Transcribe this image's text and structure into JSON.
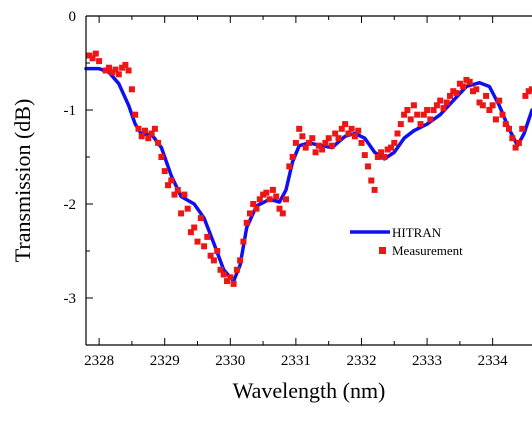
{
  "chart_data": {
    "type": "line",
    "xlabel": "Wavelength (nm)",
    "ylabel": "Transmission (dB)",
    "xlim": [
      2327.8,
      2334.6
    ],
    "ylim": [
      -3.5,
      0
    ],
    "xticks": [
      2328,
      2329,
      2330,
      2331,
      2332,
      2333,
      2334
    ],
    "yticks": [
      0,
      -1,
      -2,
      -3
    ],
    "grid": false,
    "legend_position": "center-right",
    "series": [
      {
        "name": "HITRAN",
        "kind": "line",
        "color": "#1010ee",
        "points": [
          [
            2327.8,
            -0.56
          ],
          [
            2328.0,
            -0.56
          ],
          [
            2328.15,
            -0.6
          ],
          [
            2328.3,
            -0.72
          ],
          [
            2328.45,
            -0.95
          ],
          [
            2328.55,
            -1.15
          ],
          [
            2328.65,
            -1.26
          ],
          [
            2328.8,
            -1.26
          ],
          [
            2328.95,
            -1.4
          ],
          [
            2329.1,
            -1.7
          ],
          [
            2329.25,
            -1.92
          ],
          [
            2329.45,
            -2.0
          ],
          [
            2329.6,
            -2.15
          ],
          [
            2329.75,
            -2.42
          ],
          [
            2329.9,
            -2.7
          ],
          [
            2330.05,
            -2.82
          ],
          [
            2330.15,
            -2.65
          ],
          [
            2330.25,
            -2.25
          ],
          [
            2330.4,
            -2.02
          ],
          [
            2330.6,
            -1.95
          ],
          [
            2330.75,
            -1.98
          ],
          [
            2330.85,
            -1.85
          ],
          [
            2330.95,
            -1.55
          ],
          [
            2331.05,
            -1.38
          ],
          [
            2331.2,
            -1.35
          ],
          [
            2331.4,
            -1.38
          ],
          [
            2331.55,
            -1.4
          ],
          [
            2331.75,
            -1.28
          ],
          [
            2331.9,
            -1.25
          ],
          [
            2332.05,
            -1.3
          ],
          [
            2332.2,
            -1.45
          ],
          [
            2332.35,
            -1.52
          ],
          [
            2332.5,
            -1.45
          ],
          [
            2332.65,
            -1.3
          ],
          [
            2332.8,
            -1.22
          ],
          [
            2333.0,
            -1.15
          ],
          [
            2333.2,
            -1.05
          ],
          [
            2333.4,
            -0.9
          ],
          [
            2333.6,
            -0.75
          ],
          [
            2333.8,
            -0.71
          ],
          [
            2333.95,
            -0.75
          ],
          [
            2334.1,
            -0.95
          ],
          [
            2334.25,
            -1.2
          ],
          [
            2334.38,
            -1.38
          ],
          [
            2334.48,
            -1.25
          ],
          [
            2334.6,
            -1.0
          ]
        ]
      },
      {
        "name": "Measurement",
        "kind": "scatter",
        "color": "#ee1515",
        "points": [
          [
            2327.85,
            -0.42
          ],
          [
            2327.9,
            -0.45
          ],
          [
            2327.95,
            -0.4
          ],
          [
            2328.0,
            -0.48
          ],
          [
            2328.1,
            -0.58
          ],
          [
            2328.15,
            -0.55
          ],
          [
            2328.2,
            -0.6
          ],
          [
            2328.25,
            -0.57
          ],
          [
            2328.3,
            -0.62
          ],
          [
            2328.35,
            -0.55
          ],
          [
            2328.4,
            -0.52
          ],
          [
            2328.45,
            -0.58
          ],
          [
            2328.5,
            -0.78
          ],
          [
            2328.55,
            -1.05
          ],
          [
            2328.6,
            -1.2
          ],
          [
            2328.65,
            -1.28
          ],
          [
            2328.7,
            -1.22
          ],
          [
            2328.75,
            -1.3
          ],
          [
            2328.8,
            -1.25
          ],
          [
            2328.85,
            -1.2
          ],
          [
            2328.9,
            -1.35
          ],
          [
            2328.95,
            -1.5
          ],
          [
            2329.0,
            -1.65
          ],
          [
            2329.05,
            -1.8
          ],
          [
            2329.1,
            -1.75
          ],
          [
            2329.15,
            -1.9
          ],
          [
            2329.2,
            -1.85
          ],
          [
            2329.25,
            -2.1
          ],
          [
            2329.3,
            -1.9
          ],
          [
            2329.35,
            -2.05
          ],
          [
            2329.4,
            -2.3
          ],
          [
            2329.45,
            -2.25
          ],
          [
            2329.5,
            -2.4
          ],
          [
            2329.55,
            -2.15
          ],
          [
            2329.6,
            -2.45
          ],
          [
            2329.65,
            -2.35
          ],
          [
            2329.7,
            -2.55
          ],
          [
            2329.75,
            -2.6
          ],
          [
            2329.8,
            -2.5
          ],
          [
            2329.85,
            -2.7
          ],
          [
            2329.9,
            -2.75
          ],
          [
            2329.95,
            -2.82
          ],
          [
            2330.0,
            -2.78
          ],
          [
            2330.05,
            -2.85
          ],
          [
            2330.1,
            -2.7
          ],
          [
            2330.15,
            -2.6
          ],
          [
            2330.2,
            -2.4
          ],
          [
            2330.25,
            -2.2
          ],
          [
            2330.3,
            -2.1
          ],
          [
            2330.35,
            -2.0
          ],
          [
            2330.4,
            -2.05
          ],
          [
            2330.45,
            -1.95
          ],
          [
            2330.5,
            -1.9
          ],
          [
            2330.55,
            -1.88
          ],
          [
            2330.6,
            -1.95
          ],
          [
            2330.65,
            -1.85
          ],
          [
            2330.7,
            -1.92
          ],
          [
            2330.75,
            -2.05
          ],
          [
            2330.8,
            -2.1
          ],
          [
            2330.85,
            -1.95
          ],
          [
            2330.9,
            -1.6
          ],
          [
            2330.95,
            -1.5
          ],
          [
            2331.0,
            -1.35
          ],
          [
            2331.05,
            -1.2
          ],
          [
            2331.1,
            -1.28
          ],
          [
            2331.15,
            -1.4
          ],
          [
            2331.2,
            -1.35
          ],
          [
            2331.25,
            -1.3
          ],
          [
            2331.3,
            -1.45
          ],
          [
            2331.35,
            -1.38
          ],
          [
            2331.4,
            -1.42
          ],
          [
            2331.45,
            -1.35
          ],
          [
            2331.5,
            -1.3
          ],
          [
            2331.55,
            -1.38
          ],
          [
            2331.6,
            -1.25
          ],
          [
            2331.65,
            -1.3
          ],
          [
            2331.7,
            -1.2
          ],
          [
            2331.75,
            -1.15
          ],
          [
            2331.8,
            -1.25
          ],
          [
            2331.85,
            -1.2
          ],
          [
            2331.9,
            -1.28
          ],
          [
            2331.95,
            -1.22
          ],
          [
            2332.0,
            -1.35
          ],
          [
            2332.05,
            -1.48
          ],
          [
            2332.1,
            -1.6
          ],
          [
            2332.15,
            -1.75
          ],
          [
            2332.2,
            -1.85
          ],
          [
            2332.25,
            -1.5
          ],
          [
            2332.3,
            -1.45
          ],
          [
            2332.35,
            -1.5
          ],
          [
            2332.4,
            -1.42
          ],
          [
            2332.45,
            -1.4
          ],
          [
            2332.5,
            -1.35
          ],
          [
            2332.55,
            -1.25
          ],
          [
            2332.6,
            -1.15
          ],
          [
            2332.65,
            -1.05
          ],
          [
            2332.7,
            -1.0
          ],
          [
            2332.75,
            -1.1
          ],
          [
            2332.8,
            -0.95
          ],
          [
            2332.85,
            -1.05
          ],
          [
            2332.9,
            -1.15
          ],
          [
            2332.95,
            -1.05
          ],
          [
            2333.0,
            -1.0
          ],
          [
            2333.05,
            -1.1
          ],
          [
            2333.1,
            -1.0
          ],
          [
            2333.15,
            -0.95
          ],
          [
            2333.2,
            -0.9
          ],
          [
            2333.25,
            -0.98
          ],
          [
            2333.3,
            -0.92
          ],
          [
            2333.35,
            -0.85
          ],
          [
            2333.4,
            -0.8
          ],
          [
            2333.45,
            -0.82
          ],
          [
            2333.5,
            -0.72
          ],
          [
            2333.55,
            -0.75
          ],
          [
            2333.6,
            -0.68
          ],
          [
            2333.65,
            -0.7
          ],
          [
            2333.7,
            -0.8
          ],
          [
            2333.75,
            -0.78
          ],
          [
            2333.8,
            -0.92
          ],
          [
            2333.85,
            -0.95
          ],
          [
            2333.9,
            -0.85
          ],
          [
            2333.95,
            -1.0
          ],
          [
            2334.0,
            -0.95
          ],
          [
            2334.05,
            -1.1
          ],
          [
            2334.1,
            -0.9
          ],
          [
            2334.15,
            -1.05
          ],
          [
            2334.2,
            -1.15
          ],
          [
            2334.25,
            -1.2
          ],
          [
            2334.3,
            -1.3
          ],
          [
            2334.35,
            -1.4
          ],
          [
            2334.4,
            -1.35
          ],
          [
            2334.45,
            -1.2
          ],
          [
            2334.5,
            -0.85
          ],
          [
            2334.55,
            -0.8
          ],
          [
            2334.6,
            -0.78
          ]
        ]
      }
    ]
  }
}
